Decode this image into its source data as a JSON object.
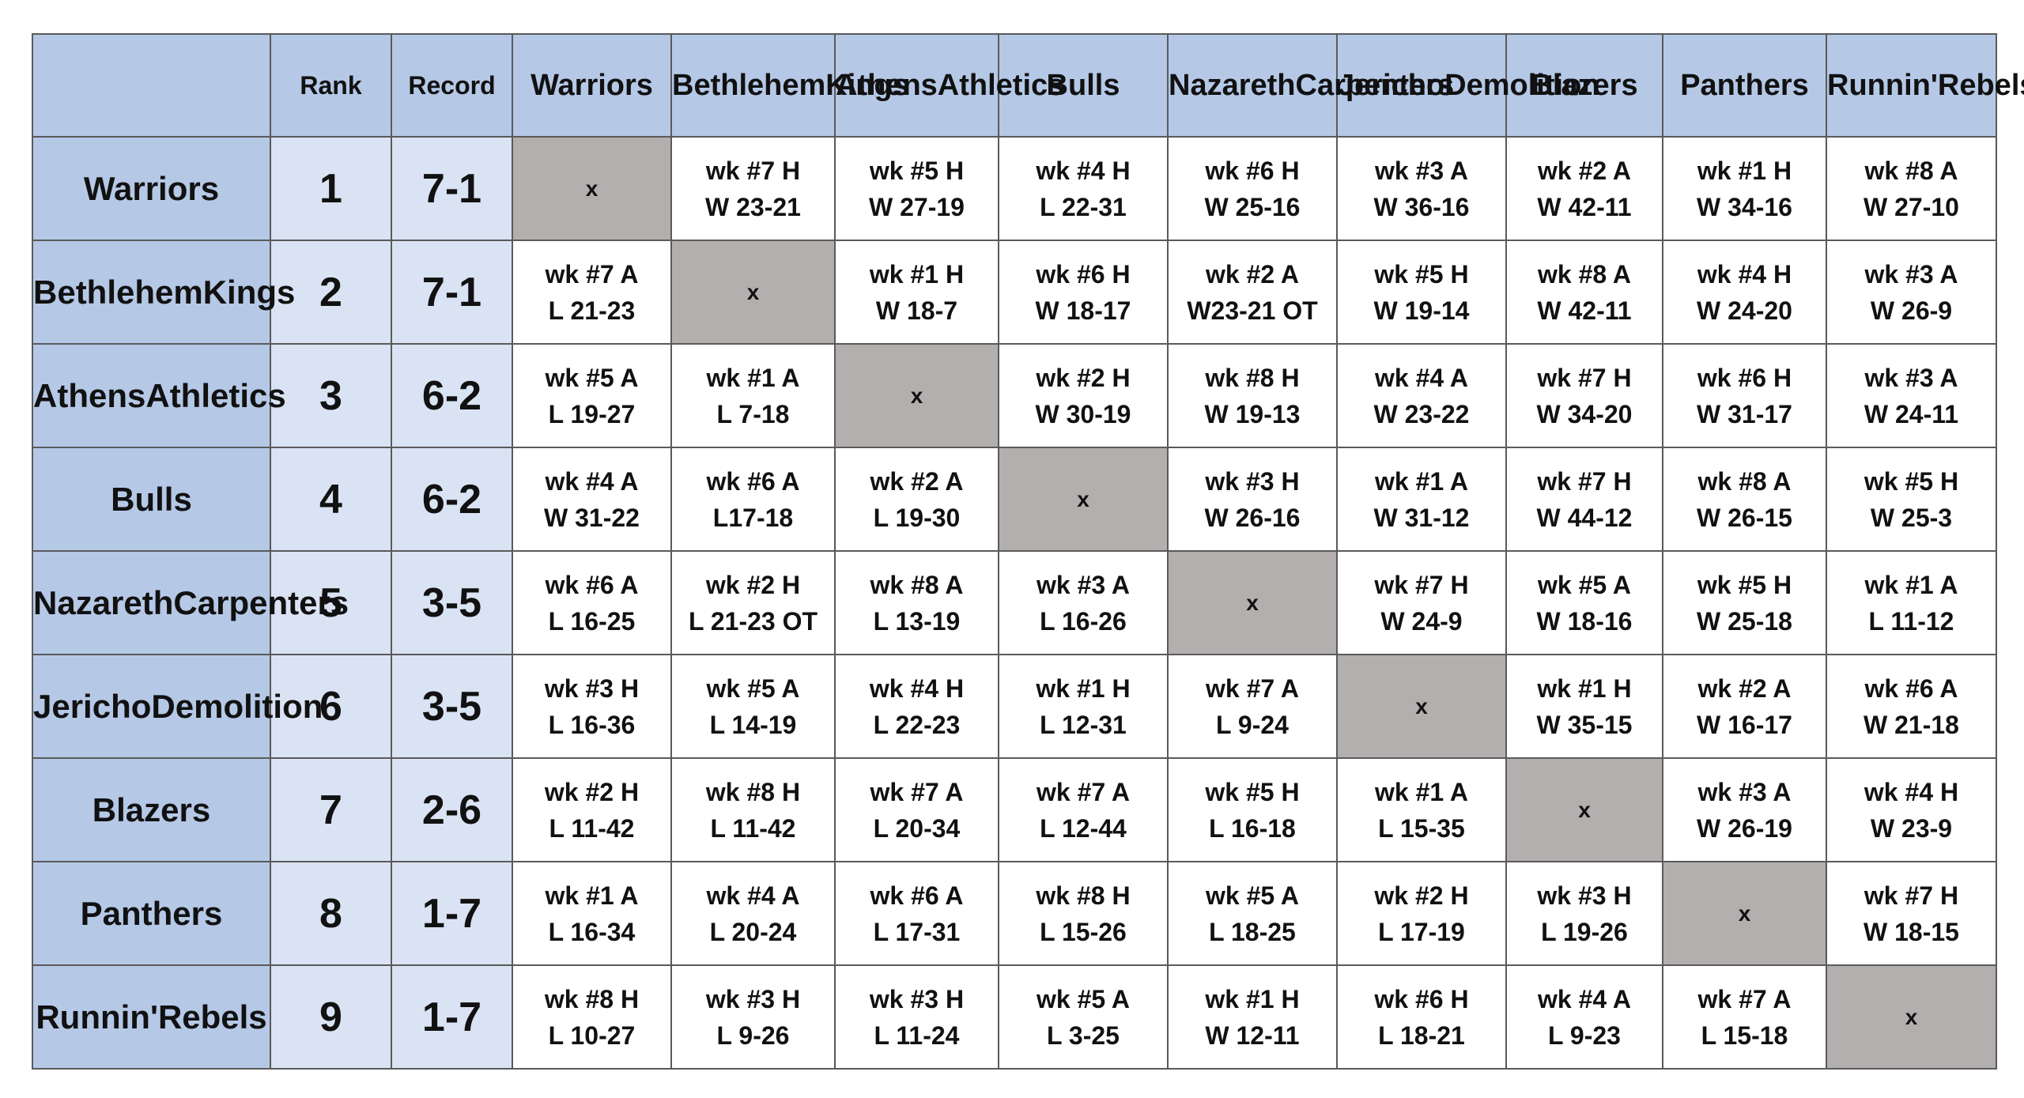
{
  "headers": {
    "rank": "Rank",
    "record": "Record",
    "teams": [
      [
        "Warriors"
      ],
      [
        "Bethlehem",
        "Kings"
      ],
      [
        "Athens",
        "Athletics"
      ],
      [
        "Bulls"
      ],
      [
        "Nazareth",
        "Carpenters"
      ],
      [
        "Jericho",
        "Demolition"
      ],
      [
        "Blazers"
      ],
      [
        "Panthers"
      ],
      [
        "Runnin'",
        "Rebels"
      ]
    ]
  },
  "rows": [
    {
      "team": [
        "Warriors"
      ],
      "rank": "1",
      "record": "7-1",
      "cells": [
        null,
        [
          "wk #7 H",
          "W 23-21"
        ],
        [
          "wk #5 H",
          "W 27-19"
        ],
        [
          "wk #4 H",
          "L 22-31"
        ],
        [
          "wk #6 H",
          "W 25-16"
        ],
        [
          "wk #3 A",
          "W 36-16"
        ],
        [
          "wk #2 A",
          "W 42-11"
        ],
        [
          "wk #1 H",
          "W 34-16"
        ],
        [
          "wk #8 A",
          "W 27-10"
        ]
      ]
    },
    {
      "team": [
        "Bethlehem",
        "Kings"
      ],
      "rank": "2",
      "record": "7-1",
      "cells": [
        [
          "wk #7 A",
          "L 21-23"
        ],
        null,
        [
          "wk #1 H",
          "W 18-7"
        ],
        [
          "wk #6 H",
          "W 18-17"
        ],
        [
          "wk #2 A",
          "W23-21 OT"
        ],
        [
          "wk #5 H",
          "W 19-14"
        ],
        [
          "wk #8 A",
          "W 42-11"
        ],
        [
          "wk #4 H",
          "W 24-20"
        ],
        [
          "wk #3 A",
          "W 26-9"
        ]
      ]
    },
    {
      "team": [
        "Athens",
        "Athletics"
      ],
      "rank": "3",
      "record": "6-2",
      "cells": [
        [
          "wk #5 A",
          "L 19-27"
        ],
        [
          "wk #1 A",
          "L 7-18"
        ],
        null,
        [
          "wk #2 H",
          "W 30-19"
        ],
        [
          "wk #8 H",
          "W 19-13"
        ],
        [
          "wk #4 A",
          "W 23-22"
        ],
        [
          "wk #7 H",
          "W 34-20"
        ],
        [
          "wk #6 H",
          "W 31-17"
        ],
        [
          "wk #3 A",
          "W 24-11"
        ]
      ]
    },
    {
      "team": [
        "Bulls"
      ],
      "rank": "4",
      "record": "6-2",
      "cells": [
        [
          "wk #4 A",
          "W 31-22"
        ],
        [
          "wk #6 A",
          "L17-18"
        ],
        [
          "wk #2 A",
          "L 19-30"
        ],
        null,
        [
          "wk #3 H",
          "W 26-16"
        ],
        [
          "wk #1 A",
          "W 31-12"
        ],
        [
          "wk #7 H",
          "W 44-12"
        ],
        [
          "wk #8 A",
          "W 26-15"
        ],
        [
          "wk #5 H",
          "W 25-3"
        ]
      ]
    },
    {
      "team": [
        "Nazareth",
        "Carpenters"
      ],
      "rank": "5",
      "record": "3-5",
      "cells": [
        [
          "wk #6 A",
          "L 16-25"
        ],
        [
          "wk #2 H",
          "L 21-23 OT"
        ],
        [
          "wk #8 A",
          "L 13-19"
        ],
        [
          "wk #3 A",
          "L 16-26"
        ],
        null,
        [
          "wk #7 H",
          "W 24-9"
        ],
        [
          "wk #5 A",
          "W 18-16"
        ],
        [
          "wk #5 H",
          "W 25-18"
        ],
        [
          "wk #1 A",
          "L 11-12"
        ]
      ]
    },
    {
      "team": [
        "Jericho",
        "Demolition"
      ],
      "rank": "6",
      "record": "3-5",
      "cells": [
        [
          "wk #3 H",
          "L 16-36"
        ],
        [
          "wk #5 A",
          "L 14-19"
        ],
        [
          "wk #4 H",
          "L 22-23"
        ],
        [
          "wk #1 H",
          "L 12-31"
        ],
        [
          "wk #7 A",
          "L 9-24"
        ],
        null,
        [
          "wk #1 H",
          "W 35-15"
        ],
        [
          "wk #2 A",
          "W 16-17"
        ],
        [
          "wk #6 A",
          "W 21-18"
        ]
      ]
    },
    {
      "team": [
        "Blazers"
      ],
      "rank": "7",
      "record": "2-6",
      "cells": [
        [
          "wk #2 H",
          "L 11-42"
        ],
        [
          "wk #8 H",
          "L 11-42"
        ],
        [
          "wk #7 A",
          "L 20-34"
        ],
        [
          "wk #7 A",
          "L 12-44"
        ],
        [
          "wk #5 H",
          "L 16-18"
        ],
        [
          "wk #1 A",
          "L 15-35"
        ],
        null,
        [
          "wk #3 A",
          "W 26-19"
        ],
        [
          "wk #4 H",
          "W 23-9"
        ]
      ]
    },
    {
      "team": [
        "Panthers"
      ],
      "rank": "8",
      "record": "1-7",
      "cells": [
        [
          "wk #1 A",
          "L 16-34"
        ],
        [
          "wk #4 A",
          "L 20-24"
        ],
        [
          "wk #6 A",
          "L 17-31"
        ],
        [
          "wk #8 H",
          "L 15-26"
        ],
        [
          "wk #5 A",
          "L 18-25"
        ],
        [
          "wk #2 H",
          "L 17-19"
        ],
        [
          "wk #3 H",
          "L 19-26"
        ],
        null,
        [
          "wk #7 H",
          "W 18-15"
        ]
      ]
    },
    {
      "team": [
        "Runnin'",
        "Rebels"
      ],
      "rank": "9",
      "record": "1-7",
      "cells": [
        [
          "wk #8 H",
          "L 10-27"
        ],
        [
          "wk #3 H",
          "L 9-26"
        ],
        [
          "wk #3 H",
          "L 11-24"
        ],
        [
          "wk #5 A",
          "L 3-25"
        ],
        [
          "wk #1 H",
          "W 12-11"
        ],
        [
          "wk #6 H",
          "L 18-21"
        ],
        [
          "wk #4 A",
          "L 9-23"
        ],
        [
          "wk #7 A",
          "L 15-18"
        ],
        null
      ]
    }
  ],
  "self_marker": "x",
  "colors": {
    "header_blue": "#b5c8e6",
    "rank_record_blue": "#dae3f3",
    "self_gray": "#b3afae",
    "border": "#5a5a5a"
  }
}
